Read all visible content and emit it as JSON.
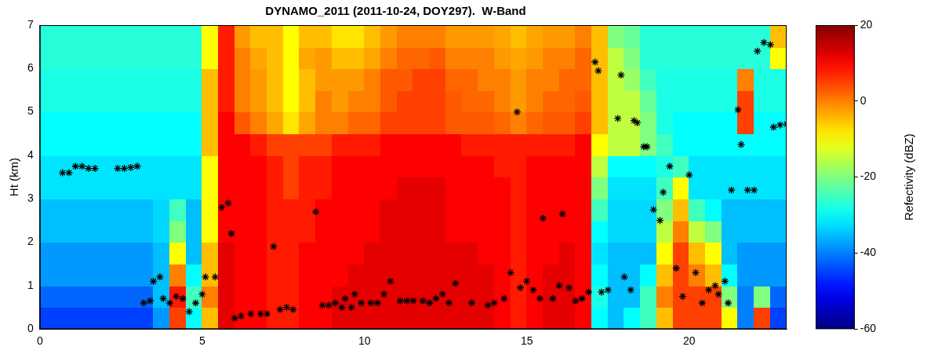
{
  "chart_data": {
    "type": "heatmap",
    "title": "DYNAMO_2011 (2011-10-24, DOY297).  W-Band",
    "y_label": "Ht (km)",
    "xlim": [
      0,
      23
    ],
    "xticks": [
      0,
      5,
      10,
      15,
      20
    ],
    "ylim": [
      0,
      7
    ],
    "yticks": [
      0,
      1,
      2,
      3,
      4,
      5,
      6,
      7
    ],
    "grid": false,
    "cells": {
      "x_edges": [
        0,
        0.5,
        1,
        1.5,
        2,
        2.5,
        3,
        3.5,
        4,
        4.5,
        5,
        5.5,
        6,
        6.5,
        7,
        7.5,
        8,
        8.5,
        9,
        9.5,
        10,
        10.5,
        11,
        11.5,
        12,
        12.5,
        13,
        13.5,
        14,
        14.5,
        15,
        15.5,
        16,
        16.5,
        17,
        17.5,
        18,
        18.5,
        19,
        19.5,
        20,
        20.5,
        21,
        21.5,
        22,
        22.5,
        23
      ],
      "y_edges": [
        0,
        0.5,
        1,
        1.5,
        2,
        2.5,
        3,
        3.5,
        4,
        4.5,
        5,
        5.5,
        6,
        6.5,
        7
      ],
      "values": [
        [
          -45,
          -42,
          -38,
          -38,
          -35,
          -35,
          -32,
          -32,
          -30,
          -30,
          -28,
          -28,
          -27,
          -27
        ],
        [
          -45,
          -42,
          -38,
          -38,
          -35,
          -35,
          -32,
          -32,
          -30,
          -30,
          -28,
          -28,
          -27,
          -27
        ],
        [
          -45,
          -42,
          -38,
          -38,
          -35,
          -35,
          -32,
          -32,
          -30,
          -30,
          -28,
          -28,
          -27,
          -27
        ],
        [
          -45,
          -42,
          -38,
          -38,
          -35,
          -35,
          -32,
          -32,
          -30,
          -30,
          -28,
          -28,
          -27,
          -27
        ],
        [
          -45,
          -42,
          -38,
          -38,
          -35,
          -35,
          -32,
          -32,
          -30,
          -30,
          -28,
          -28,
          -27,
          -27
        ],
        [
          -45,
          -42,
          -38,
          -38,
          -35,
          -35,
          -32,
          -32,
          -30,
          -30,
          -28,
          -28,
          -27,
          -27
        ],
        [
          -45,
          -42,
          -38,
          -38,
          -35,
          -35,
          -32,
          -32,
          -30,
          -30,
          -28,
          -28,
          -27,
          -27
        ],
        [
          -38,
          -35,
          -35,
          -35,
          -33,
          -33,
          -32,
          -32,
          -30,
          -30,
          -28,
          -28,
          -27,
          -27
        ],
        [
          5,
          8,
          0,
          -10,
          -20,
          -25,
          -32,
          -32,
          -30,
          -30,
          -28,
          -28,
          -27,
          -27
        ],
        [
          -30,
          -25,
          -30,
          -35,
          -35,
          -35,
          -32,
          -32,
          -30,
          -30,
          -28,
          -28,
          -27,
          -27
        ],
        [
          -5,
          0,
          -5,
          -5,
          -10,
          -10,
          -10,
          -10,
          -5,
          -5,
          -5,
          -5,
          -10,
          -10
        ],
        [
          12,
          12,
          12,
          12,
          10,
          10,
          10,
          10,
          10,
          10,
          8,
          8,
          8,
          8
        ],
        [
          10,
          10,
          10,
          10,
          10,
          10,
          10,
          10,
          10,
          3,
          0,
          0,
          0,
          -2
        ],
        [
          10,
          10,
          10,
          10,
          10,
          10,
          10,
          10,
          8,
          0,
          -2,
          -2,
          -3,
          -5
        ],
        [
          8,
          8,
          8,
          8,
          8,
          8,
          8,
          8,
          5,
          -3,
          -5,
          -5,
          -5,
          -5
        ],
        [
          8,
          8,
          8,
          8,
          8,
          8,
          5,
          5,
          5,
          -8,
          -10,
          -10,
          -10,
          -10
        ],
        [
          10,
          10,
          10,
          10,
          8,
          8,
          8,
          8,
          5,
          -3,
          -5,
          -5,
          -3,
          -5
        ],
        [
          10,
          10,
          10,
          10,
          10,
          10,
          8,
          8,
          5,
          0,
          0,
          -2,
          -2,
          -5
        ],
        [
          12,
          12,
          10,
          10,
          10,
          10,
          10,
          10,
          8,
          0,
          -2,
          -2,
          -5,
          -8
        ],
        [
          12,
          12,
          12,
          10,
          10,
          10,
          10,
          10,
          8,
          2,
          0,
          -2,
          -5,
          -8
        ],
        [
          12,
          12,
          12,
          12,
          10,
          10,
          10,
          10,
          8,
          2,
          0,
          0,
          -3,
          -5
        ],
        [
          12,
          12,
          12,
          12,
          12,
          12,
          10,
          10,
          10,
          5,
          3,
          3,
          0,
          -2
        ],
        [
          12,
          12,
          12,
          12,
          12,
          12,
          12,
          10,
          10,
          5,
          5,
          3,
          2,
          0
        ],
        [
          12,
          12,
          12,
          12,
          12,
          12,
          12,
          10,
          10,
          5,
          5,
          5,
          2,
          0
        ],
        [
          12,
          12,
          12,
          12,
          12,
          12,
          12,
          10,
          10,
          5,
          5,
          5,
          3,
          0
        ],
        [
          12,
          12,
          12,
          12,
          10,
          10,
          10,
          10,
          10,
          3,
          3,
          2,
          0,
          -2
        ],
        [
          12,
          12,
          12,
          12,
          10,
          10,
          10,
          10,
          8,
          3,
          2,
          2,
          0,
          -2
        ],
        [
          12,
          12,
          12,
          10,
          10,
          10,
          10,
          10,
          8,
          3,
          2,
          0,
          0,
          -2
        ],
        [
          10,
          10,
          10,
          10,
          10,
          10,
          10,
          8,
          8,
          2,
          0,
          0,
          -2,
          -3
        ],
        [
          8,
          8,
          8,
          8,
          8,
          8,
          8,
          8,
          8,
          0,
          -2,
          -2,
          -3,
          -5
        ],
        [
          10,
          10,
          10,
          10,
          10,
          10,
          10,
          10,
          8,
          2,
          0,
          0,
          -2,
          -3
        ],
        [
          12,
          12,
          12,
          10,
          10,
          10,
          10,
          10,
          8,
          3,
          2,
          0,
          0,
          -2
        ],
        [
          12,
          12,
          12,
          12,
          10,
          10,
          10,
          10,
          8,
          3,
          2,
          2,
          0,
          -2
        ],
        [
          10,
          10,
          10,
          10,
          10,
          10,
          10,
          10,
          10,
          5,
          3,
          2,
          2,
          0
        ],
        [
          -30,
          -28,
          -30,
          -32,
          -30,
          -25,
          -20,
          -15,
          -10,
          -5,
          -5,
          -5,
          -5,
          -5
        ],
        [
          -35,
          -35,
          -35,
          -35,
          -33,
          -33,
          -32,
          -30,
          -15,
          -15,
          -15,
          -15,
          -15,
          -20
        ],
        [
          -30,
          -35,
          -35,
          -35,
          -33,
          -33,
          -32,
          -30,
          -15,
          -15,
          -15,
          -18,
          -20,
          -22
        ],
        [
          -25,
          -25,
          -30,
          -35,
          -33,
          -33,
          -32,
          -30,
          -20,
          -20,
          -22,
          -25,
          -27,
          -27
        ],
        [
          -5,
          0,
          -5,
          -10,
          -15,
          -20,
          -25,
          -28,
          -25,
          -28,
          -28,
          -28,
          -27,
          -27
        ],
        [
          5,
          5,
          5,
          5,
          0,
          -5,
          -10,
          -25,
          -30,
          -30,
          -28,
          -28,
          -27,
          -27
        ],
        [
          5,
          5,
          0,
          -5,
          -15,
          -25,
          -32,
          -32,
          -30,
          -30,
          -28,
          -28,
          -27,
          -27
        ],
        [
          5,
          5,
          -5,
          -10,
          -20,
          -30,
          -32,
          -32,
          -30,
          -30,
          -28,
          -28,
          -27,
          -27
        ],
        [
          -10,
          -20,
          -30,
          -35,
          -35,
          -35,
          -32,
          -32,
          -30,
          -30,
          -28,
          -28,
          -27,
          -27
        ],
        [
          -40,
          -40,
          -38,
          -38,
          -35,
          -35,
          -32,
          -32,
          -30,
          5,
          5,
          0,
          -27,
          -27
        ],
        [
          5,
          -20,
          -38,
          -38,
          -35,
          -35,
          -32,
          -32,
          -30,
          -30,
          -28,
          -28,
          -27,
          -27
        ],
        [
          -45,
          -42,
          -38,
          -38,
          -35,
          -35,
          -32,
          -32,
          -30,
          -30,
          -28,
          -28,
          -10,
          -5
        ]
      ]
    },
    "colorbar": {
      "label": "Refectivity (dBZ)",
      "range": [
        -60,
        20
      ],
      "ticks": [
        -60,
        -40,
        -20,
        0,
        20
      ]
    },
    "series": [
      {
        "type": "scatter",
        "marker": "star",
        "color": "#000000",
        "x": [
          0.7,
          0.9,
          1.1,
          1.3,
          1.5,
          1.7,
          2.4,
          2.6,
          2.8,
          3.0,
          3.2,
          3.4,
          3.5,
          3.7,
          3.8,
          4.0,
          4.2,
          4.4,
          4.6,
          4.8,
          5.0,
          5.1,
          5.4,
          5.6,
          5.8,
          5.9,
          6.0,
          6.2,
          6.5,
          6.8,
          7.0,
          7.2,
          7.4,
          7.6,
          7.8,
          8.5,
          8.7,
          8.9,
          9.1,
          9.3,
          9.4,
          9.6,
          9.7,
          9.9,
          10.2,
          10.4,
          10.6,
          10.8,
          11.1,
          11.3,
          11.5,
          11.8,
          12.0,
          12.2,
          12.4,
          12.6,
          12.8,
          13.3,
          13.8,
          14.0,
          14.3,
          14.5,
          14.7,
          14.8,
          15.0,
          15.2,
          15.4,
          15.5,
          15.8,
          16.0,
          16.1,
          16.3,
          16.5,
          16.7,
          16.9,
          17.1,
          17.2,
          17.3,
          17.5,
          17.8,
          17.9,
          18.0,
          18.2,
          18.3,
          18.4,
          18.6,
          18.7,
          18.9,
          19.1,
          19.2,
          19.4,
          19.6,
          19.8,
          20.0,
          20.2,
          20.4,
          20.6,
          20.8,
          20.9,
          21.1,
          21.2,
          21.3,
          21.5,
          21.6,
          21.8,
          22.0,
          22.1,
          22.3,
          22.5,
          22.6,
          22.8,
          23.0
        ],
        "values": [
          3.6,
          3.6,
          3.75,
          3.75,
          3.7,
          3.7,
          3.7,
          3.7,
          3.72,
          3.75,
          0.6,
          0.65,
          1.1,
          1.2,
          0.7,
          0.6,
          0.75,
          0.7,
          0.4,
          0.6,
          0.8,
          1.2,
          1.2,
          2.8,
          2.9,
          2.2,
          0.25,
          0.3,
          0.35,
          0.35,
          0.35,
          1.9,
          0.45,
          0.5,
          0.45,
          2.7,
          0.55,
          0.55,
          0.6,
          0.5,
          0.7,
          0.5,
          0.8,
          0.6,
          0.6,
          0.6,
          0.8,
          1.1,
          0.65,
          0.65,
          0.65,
          0.65,
          0.6,
          0.7,
          0.8,
          0.6,
          1.05,
          0.6,
          0.55,
          0.6,
          0.7,
          1.3,
          5.0,
          0.95,
          1.1,
          0.9,
          0.7,
          2.55,
          0.7,
          1.0,
          2.65,
          0.95,
          0.65,
          0.7,
          0.85,
          6.15,
          5.95,
          0.85,
          0.9,
          4.85,
          5.85,
          1.2,
          0.9,
          4.8,
          4.75,
          4.2,
          4.2,
          2.75,
          2.5,
          3.15,
          3.75,
          1.4,
          0.75,
          3.55,
          1.3,
          0.6,
          0.9,
          1.0,
          0.8,
          1.1,
          0.6,
          3.2,
          5.05,
          4.25,
          3.2,
          3.2,
          6.4,
          6.6,
          6.55,
          4.65,
          4.7,
          4.72
        ]
      }
    ]
  }
}
